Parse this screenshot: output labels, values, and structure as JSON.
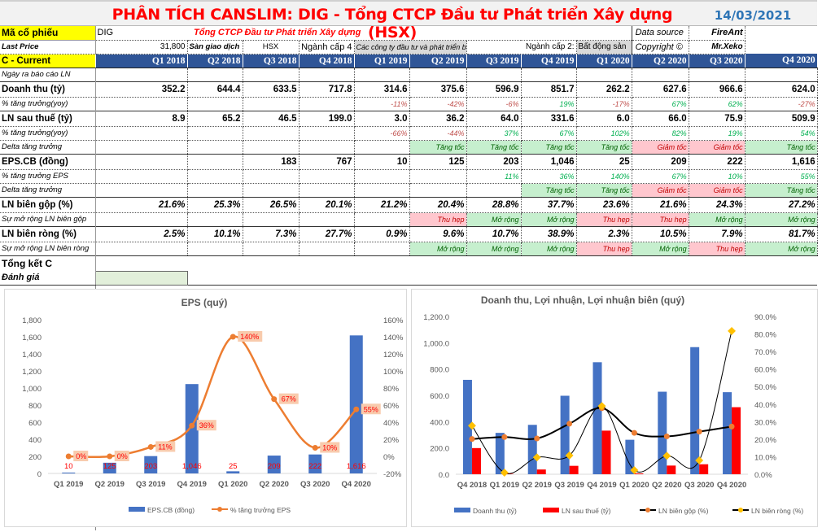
{
  "title": "PHÂN TÍCH CANSLIM: DIG - Tổng CTCP Đầu tư Phát triển Xây dựng (HSX)",
  "date": "14/03/2021",
  "info": {
    "ticker_label": "Mã cổ phiếu",
    "ticker": "DIG",
    "company": "Tổng CTCP Đầu tư Phát triển Xây dựng",
    "data_source_label": "Data source",
    "data_source": "FireAnt",
    "last_price_label": "Last Price",
    "last_price": "31,800",
    "exchange_label": "Sàn giao dịch",
    "exchange": "HSX",
    "industry4_label": "Ngành cấp 4",
    "industry4": "Các công ty đầu tư và phát triển bất động sản",
    "industry2_label": "Ngành cấp 2:",
    "industry2": "Bất động sản",
    "copyright_label": "Copyright ©",
    "copyright": "Mr.Xeko"
  },
  "header_label": "C - Current",
  "quarters": [
    "Q1 2018",
    "Q2 2018",
    "Q3 2018",
    "Q4 2018",
    "Q1 2019",
    "Q2 2019",
    "Q3 2019",
    "Q4 2019",
    "Q1 2020",
    "Q2 2020",
    "Q3 2020",
    "Q4 2020"
  ],
  "rows": [
    {
      "label": "Ngày ra báo cáo LN",
      "kind": "sub",
      "type": "plain",
      "cells": [
        "",
        "",
        "",
        "",
        "",
        "",
        "",
        "",
        "",
        "",
        "",
        ""
      ]
    },
    {
      "label": "Doanh thu (tỷ)",
      "kind": "main",
      "type": "plain",
      "cells": [
        "352.2",
        "644.4",
        "633.5",
        "717.8",
        "314.6",
        "375.6",
        "596.9",
        "851.7",
        "262.2",
        "627.6",
        "966.6",
        "624.0"
      ]
    },
    {
      "label": "% tăng trưởng(yoy)",
      "kind": "sub",
      "type": "pct",
      "cells": [
        "",
        "",
        "",
        "",
        "-11%",
        "-42%",
        "-6%",
        "19%",
        "-17%",
        "67%",
        "62%",
        "-27%"
      ]
    },
    {
      "label": "LN sau thuế (tỷ)",
      "kind": "main",
      "type": "plain",
      "cells": [
        "8.9",
        "65.2",
        "46.5",
        "199.0",
        "3.0",
        "36.2",
        "64.0",
        "331.6",
        "6.0",
        "66.0",
        "75.9",
        "509.9"
      ]
    },
    {
      "label": "% tăng trưởng(yoy)",
      "kind": "sub",
      "type": "pct",
      "cells": [
        "",
        "",
        "",
        "",
        "-66%",
        "-44%",
        "37%",
        "67%",
        "102%",
        "82%",
        "19%",
        "54%"
      ]
    },
    {
      "label": "Delta tăng trưởng",
      "kind": "sub",
      "type": "status",
      "cells": [
        "",
        "",
        "",
        "",
        "",
        "Tăng tốc",
        "Tăng tốc",
        "Tăng tốc",
        "Tăng tốc",
        "Giảm tốc",
        "Giảm tốc",
        "Tăng tốc"
      ]
    },
    {
      "label": "EPS.CB (đồng)",
      "kind": "main",
      "type": "plain",
      "cells": [
        "",
        "",
        "183",
        "767",
        "10",
        "125",
        "203",
        "1,046",
        "25",
        "209",
        "222",
        "1,616"
      ]
    },
    {
      "label": "% tăng trưởng EPS",
      "kind": "sub",
      "type": "pct",
      "cells": [
        "",
        "",
        "",
        "",
        "",
        "",
        "11%",
        "36%",
        "140%",
        "67%",
        "10%",
        "55%"
      ]
    },
    {
      "label": "Delta tăng trưởng",
      "kind": "sub",
      "type": "status",
      "cells": [
        "",
        "",
        "",
        "",
        "",
        "",
        "",
        "Tăng tốc",
        "Tăng tốc",
        "Giảm tốc",
        "Giảm tốc",
        "Tăng tốc"
      ]
    },
    {
      "label": "LN biên gộp (%)",
      "kind": "main",
      "type": "margin",
      "cells": [
        "21.6%",
        "25.3%",
        "26.5%",
        "20.1%",
        "21.2%",
        "20.4%",
        "28.8%",
        "37.7%",
        "23.6%",
        "21.6%",
        "24.3%",
        "27.2%"
      ]
    },
    {
      "label": "Sự mở rộng LN biên gộp",
      "kind": "sub",
      "type": "status",
      "cells": [
        "",
        "",
        "",
        "",
        "",
        "Thu hẹp",
        "Mở rộng",
        "Mở rộng",
        "Thu hẹp",
        "Thu hẹp",
        "Mở rộng",
        "Mở rộng"
      ]
    },
    {
      "label": "LN biên ròng (%)",
      "kind": "main",
      "type": "margin",
      "cells": [
        "2.5%",
        "10.1%",
        "7.3%",
        "27.7%",
        "0.9%",
        "9.6%",
        "10.7%",
        "38.9%",
        "2.3%",
        "10.5%",
        "7.9%",
        "81.7%"
      ]
    },
    {
      "label": "Sự mở rộng LN biên ròng",
      "kind": "sub",
      "type": "status",
      "cells": [
        "",
        "",
        "",
        "",
        "",
        "Mở rộng",
        "Mở rộng",
        "Mở rộng",
        "Thu hẹp",
        "Mở rộng",
        "Thu hẹp",
        "Mở rộng"
      ]
    }
  ],
  "summary": {
    "label": "Tổng kết C",
    "rating_label": "Đánh giá"
  },
  "colors": {
    "header_blue": "#2f5597",
    "highlight_yellow": "#ffff00",
    "good_bg": "#c6efce",
    "good_text": "#006100",
    "bad_bg": "#ffc7ce",
    "bad_text": "#c00000",
    "pos_pct": "#00b050",
    "neg_pct": "#c0504d"
  },
  "chart_data": [
    {
      "type": "bar+line",
      "title": "EPS  (quý)",
      "categories": [
        "Q1 2019",
        "Q2 2019",
        "Q3 2019",
        "Q4 2019",
        "Q1 2020",
        "Q2 2020",
        "Q3 2020",
        "Q4 2020"
      ],
      "series": [
        {
          "name": "EPS.CB (đồng)",
          "type": "bar",
          "axis": "left",
          "color": "#4472c4",
          "values": [
            10,
            125,
            203,
            1046,
            25,
            209,
            222,
            1616
          ],
          "labels": [
            "10",
            "125",
            "203",
            "1,046",
            "25",
            "209",
            "222",
            "1,616"
          ]
        },
        {
          "name": "% tăng trưởng EPS",
          "type": "line-smooth",
          "axis": "right",
          "color": "#ed7d31",
          "values": [
            0,
            0,
            11,
            36,
            140,
            67,
            10,
            55
          ],
          "labels": [
            "0%",
            "0%",
            "11%",
            "36%",
            "140%",
            "67%",
            "10%",
            "55%"
          ]
        }
      ],
      "ylim": [
        0,
        1800
      ],
      "yticks": [
        "0",
        "200",
        "400",
        "600",
        "800",
        "1,000",
        "1,200",
        "1,400",
        "1,600",
        "1,800"
      ],
      "y2lim": [
        -20,
        160
      ],
      "y2ticks": [
        "-20%",
        "0%",
        "20%",
        "40%",
        "60%",
        "80%",
        "100%",
        "120%",
        "140%",
        "160%"
      ],
      "legend": "bottom",
      "grid": false
    },
    {
      "type": "bar+line",
      "title": "Doanh thu, Lợi nhuận, Lợi nhuận biên (quý)",
      "categories": [
        "Q4 2018",
        "Q1 2019",
        "Q2 2019",
        "Q3 2019",
        "Q4 2019",
        "Q1 2020",
        "Q2 2020",
        "Q3 2020",
        "Q4 2020"
      ],
      "series": [
        {
          "name": "Doanh thu (tỷ)",
          "type": "bar",
          "axis": "left",
          "color": "#4472c4",
          "values": [
            717.8,
            314.6,
            375.6,
            596.9,
            851.7,
            262.2,
            627.6,
            966.6,
            624.0
          ]
        },
        {
          "name": "LN sau thuế (tỷ)",
          "type": "bar",
          "axis": "left",
          "color": "#ff0000",
          "values": [
            199.0,
            3.0,
            36.2,
            64.0,
            331.6,
            6.0,
            66.0,
            75.9,
            509.9
          ]
        },
        {
          "name": "LN biên gộp (%)",
          "type": "line-smooth",
          "axis": "right",
          "color": "#000000",
          "marker_color": "#ed7d31",
          "values": [
            20.1,
            21.2,
            20.4,
            28.8,
            37.7,
            23.6,
            21.6,
            24.3,
            27.2
          ]
        },
        {
          "name": "LN biên ròng (%)",
          "type": "line-smooth",
          "axis": "right",
          "color": "#000000",
          "marker_color": "#ffc000",
          "values": [
            27.7,
            0.9,
            9.6,
            10.7,
            38.9,
            2.3,
            10.5,
            7.9,
            81.7
          ]
        }
      ],
      "ylim": [
        0,
        1200
      ],
      "yticks": [
        "0.0",
        "200.0",
        "400.0",
        "600.0",
        "800.0",
        "1,000.0",
        "1,200.0"
      ],
      "y2lim": [
        0,
        90
      ],
      "y2ticks": [
        "0.0%",
        "10.0%",
        "20.0%",
        "30.0%",
        "40.0%",
        "50.0%",
        "60.0%",
        "70.0%",
        "80.0%",
        "90.0%"
      ],
      "legend": "bottom",
      "grid": false
    }
  ]
}
